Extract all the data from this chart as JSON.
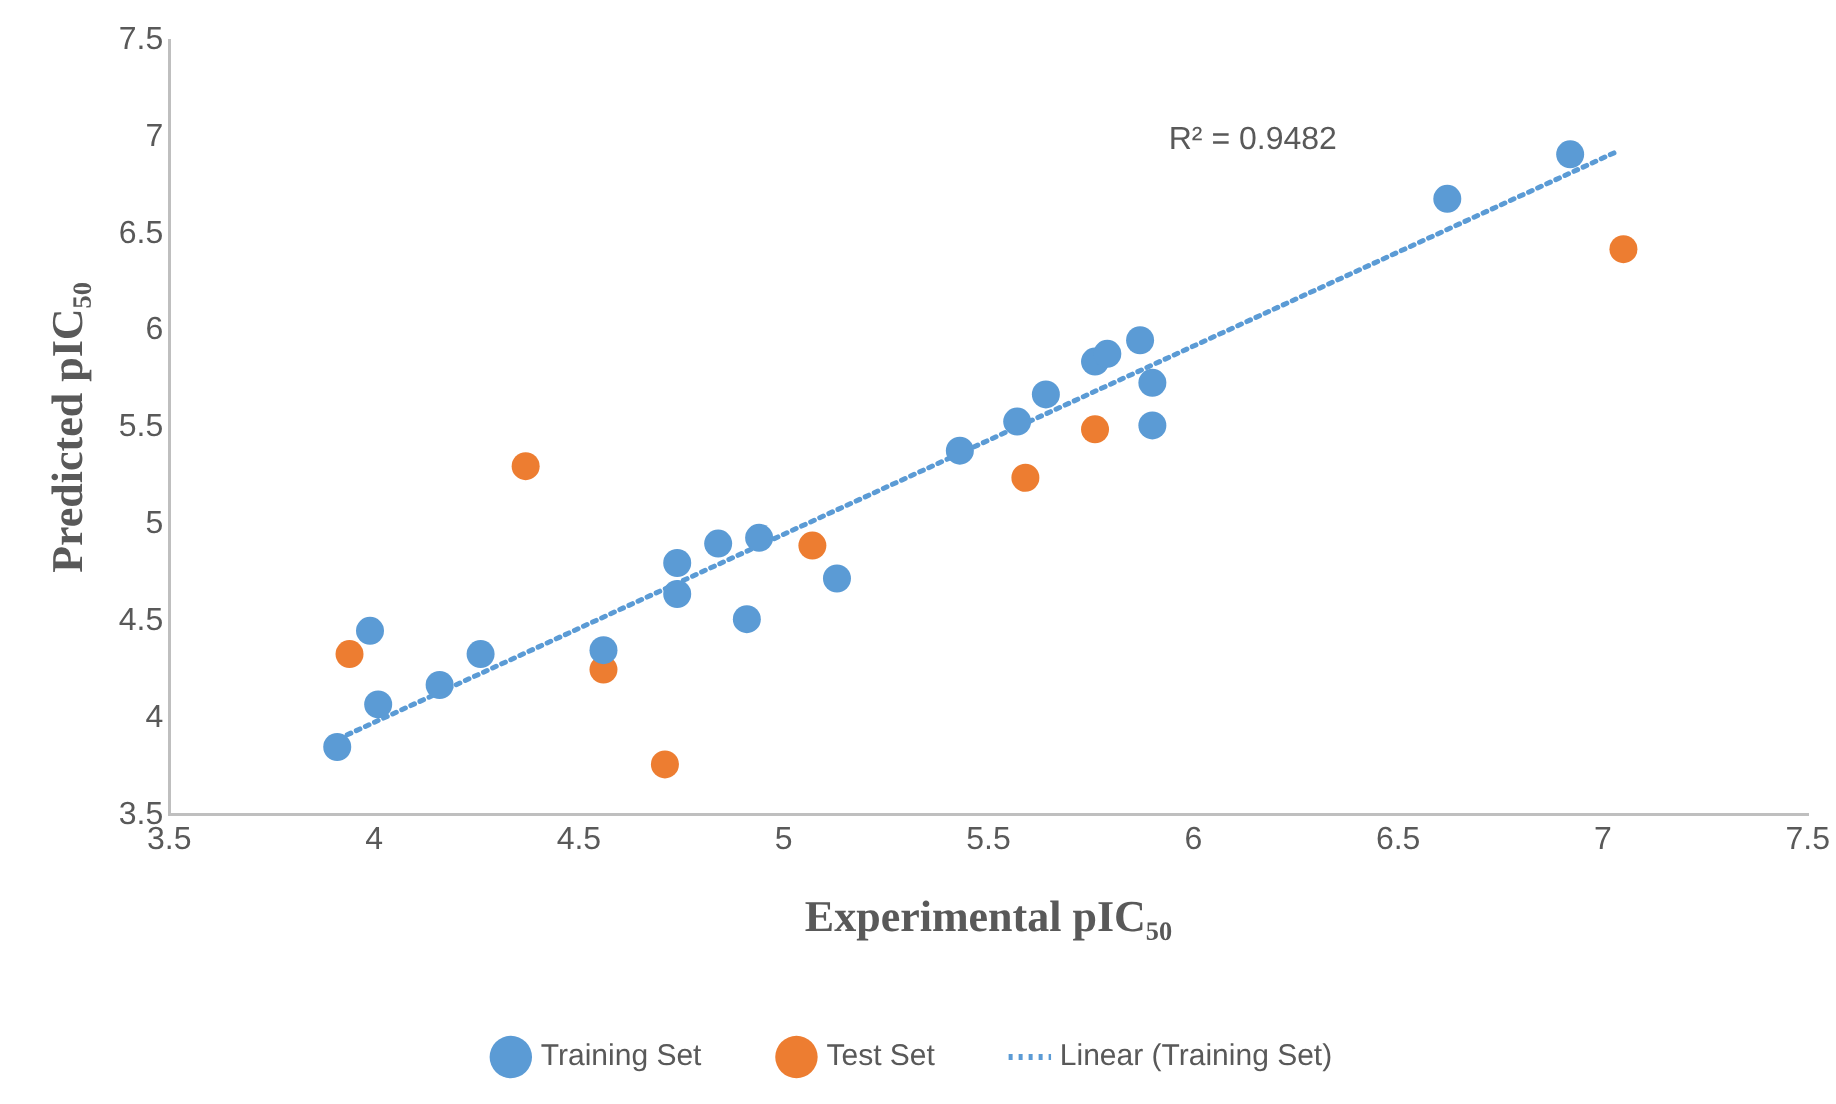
{
  "chart_data": {
    "type": "scatter",
    "xlabel": "Experimental pIC₅₀",
    "ylabel": "Predicted pIC₅₀",
    "xlim": [
      3.5,
      7.5
    ],
    "xticks": [
      3.5,
      4,
      4.5,
      5,
      5.5,
      6,
      6.5,
      7,
      7.5
    ],
    "ylim": [
      3.5,
      7.5
    ],
    "yticks": [
      3.5,
      4,
      4.5,
      5,
      5.5,
      6,
      6.5,
      7,
      7.5
    ],
    "grid": false,
    "legend": "bottom",
    "marker": "circle",
    "annotations": [
      "R² = 0.9482"
    ],
    "series": [
      {
        "name": "Training Set",
        "color": "#5b9bd5",
        "x": [
          3.91,
          4.01,
          3.99,
          4.16,
          4.26,
          4.56,
          4.74,
          4.74,
          4.84,
          4.94,
          4.91,
          5.13,
          5.43,
          5.57,
          5.64,
          5.76,
          5.79,
          5.87,
          5.9,
          5.9,
          6.62,
          6.92
        ],
        "values": [
          3.85,
          4.07,
          4.45,
          4.17,
          4.33,
          4.35,
          4.8,
          4.64,
          4.9,
          4.93,
          4.51,
          4.72,
          5.38,
          5.53,
          5.67,
          5.84,
          5.88,
          5.95,
          5.73,
          5.51,
          6.68,
          6.91
        ]
      },
      {
        "name": "Test Set",
        "color": "#ed7d31",
        "x": [
          3.94,
          4.37,
          4.56,
          4.71,
          5.07,
          5.59,
          5.76,
          7.05
        ],
        "values": [
          4.33,
          5.3,
          4.25,
          3.76,
          4.89,
          5.24,
          5.49,
          6.42
        ]
      },
      {
        "name": "Linear (Training Set)",
        "type": "line",
        "color": "#5b9bd5",
        "line_style": "dotted",
        "marker": "none",
        "x": [
          3.89,
          7.03
        ],
        "values": [
          3.87,
          6.92
        ]
      }
    ]
  }
}
